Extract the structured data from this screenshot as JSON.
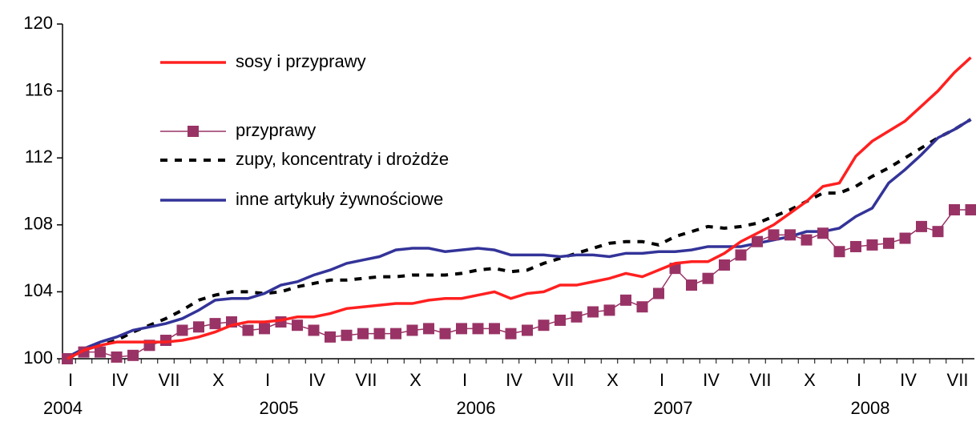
{
  "chart_data": {
    "type": "line",
    "categories": [
      "I",
      null,
      null,
      "IV",
      null,
      null,
      "VII",
      null,
      null,
      "X",
      null,
      null,
      "I",
      null,
      null,
      "IV",
      null,
      null,
      "VII",
      null,
      null,
      "X",
      null,
      null,
      "I",
      null,
      null,
      "IV",
      null,
      null,
      "VII",
      null,
      null,
      "X",
      null,
      null,
      "I",
      null,
      null,
      "IV",
      null,
      null,
      "VII",
      null,
      null,
      "X",
      null,
      null,
      "I",
      null,
      null,
      "IV",
      null,
      null,
      "VII",
      null
    ],
    "years": [
      "2004",
      "2005",
      "2006",
      "2007",
      "2008"
    ],
    "ylim": [
      100,
      120
    ],
    "yticks": [
      100,
      104,
      108,
      112,
      116,
      120
    ],
    "series": [
      {
        "name": "sosy i przyprawy",
        "color": "#ff2020",
        "style": "solid",
        "marker": false,
        "values": [
          100,
          100.5,
          100.8,
          101,
          101,
          101,
          101,
          101.1,
          101.3,
          101.6,
          102,
          102.2,
          102.2,
          102.3,
          102.5,
          102.5,
          102.7,
          103,
          103.1,
          103.2,
          103.3,
          103.3,
          103.5,
          103.6,
          103.6,
          103.8,
          104,
          103.6,
          103.9,
          104,
          104.4,
          104.4,
          104.6,
          104.8,
          105.1,
          104.9,
          105.3,
          105.7,
          105.8,
          105.8,
          106.3,
          107,
          107.5,
          108,
          108.7,
          109.4,
          110.3,
          110.5,
          112.1,
          113,
          113.6,
          114.2,
          115.1,
          116,
          117.1,
          118
        ]
      },
      {
        "name": "przyprawy",
        "color": "#993366",
        "style": "solid",
        "marker": true,
        "values": [
          100,
          100.4,
          100.4,
          100.1,
          100.2,
          100.8,
          101.1,
          101.7,
          101.9,
          102.1,
          102.2,
          101.7,
          101.8,
          102.2,
          102,
          101.7,
          101.3,
          101.4,
          101.5,
          101.5,
          101.5,
          101.7,
          101.8,
          101.5,
          101.8,
          101.8,
          101.8,
          101.5,
          101.7,
          102,
          102.3,
          102.5,
          102.8,
          102.9,
          103.5,
          103.1,
          103.9,
          105.4,
          104.4,
          104.8,
          105.6,
          106.2,
          107,
          107.4,
          107.4,
          107.1,
          107.5,
          106.4,
          106.7,
          106.8,
          106.9,
          107.2,
          107.9,
          107.6,
          108.9,
          108.9
        ]
      },
      {
        "name": "zupy, koncentraty i drożdże",
        "color": "#000000",
        "style": "dashed",
        "marker": false,
        "values": [
          100,
          100.5,
          100.8,
          101.1,
          101.6,
          102,
          102.4,
          102.9,
          103.5,
          103.8,
          104,
          104,
          103.9,
          104,
          104.3,
          104.5,
          104.7,
          104.7,
          104.8,
          104.9,
          104.9,
          105,
          105,
          105,
          105.1,
          105.3,
          105.4,
          105.2,
          105.3,
          105.7,
          106,
          106.3,
          106.6,
          106.9,
          107,
          107,
          106.8,
          107.3,
          107.6,
          107.9,
          107.8,
          107.9,
          108.1,
          108.5,
          108.9,
          109.4,
          109.9,
          109.9,
          110.3,
          110.9,
          111.4,
          112,
          112.6,
          113.2,
          113.7,
          114.3
        ]
      },
      {
        "name": "inne artykuły żywnościowe",
        "color": "#333399",
        "style": "solid",
        "marker": false,
        "values": [
          100.1,
          100.6,
          101,
          101.3,
          101.7,
          101.9,
          102.1,
          102.4,
          102.9,
          103.5,
          103.6,
          103.6,
          103.9,
          104.4,
          104.6,
          105,
          105.3,
          105.7,
          105.9,
          106.1,
          106.5,
          106.6,
          106.6,
          106.4,
          106.5,
          106.6,
          106.5,
          106.2,
          106.2,
          106.2,
          106.1,
          106.2,
          106.2,
          106.1,
          106.3,
          106.3,
          106.4,
          106.4,
          106.5,
          106.7,
          106.7,
          106.7,
          106.9,
          107.1,
          107.3,
          107.6,
          107.6,
          107.8,
          108.5,
          109,
          110.5,
          111.3,
          112.2,
          113.2,
          113.7,
          114.3
        ]
      }
    ]
  }
}
